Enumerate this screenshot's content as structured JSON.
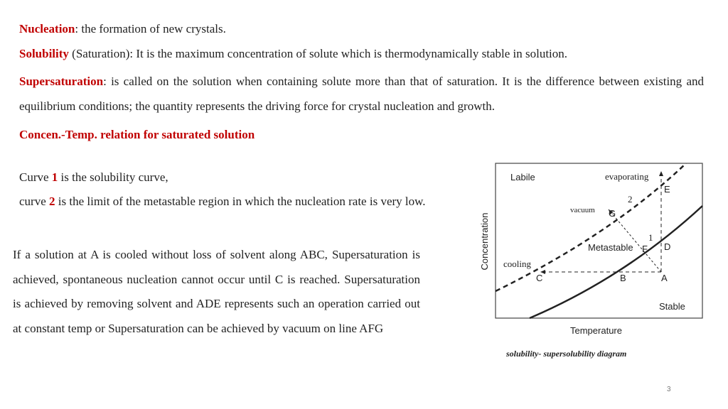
{
  "definitions": [
    {
      "term": "Nucleation",
      "text": ": the formation of new crystals."
    },
    {
      "term": "Solubility",
      "text": "(Saturation): It is the maximum concentration of solute which is thermodynamically stable in solution."
    },
    {
      "term": "Supersaturation",
      "text": ": is called on the solution when containing solute more than that of saturation. It is the difference between existing and equilibrium conditions; the quantity represents the driving force for crystal nucleation and growth."
    }
  ],
  "heading": "Concen.-Temp. relation for saturated solution",
  "curves": [
    {
      "prefix": "Curve",
      "number": "1",
      "text": "is the solubility curve,"
    },
    {
      "prefix": "curve",
      "number": "2",
      "text": "is the limit of the metastable region in which the nucleation rate is very low."
    }
  ],
  "paragraph": "If a solution at A is cooled without loss of solvent along ABC, Supersaturation is achieved, spontaneous nucleation cannot occur until C is reached. Supersaturation is achieved by removing solvent and ADE represents such an operation carried out at constant temp or Supersaturation can be achieved by vacuum on line AFG",
  "diagram": {
    "y_label": "Concentration",
    "x_label": "Temperature",
    "caption": "solubility- supersolubility diagram",
    "labels": {
      "labile": "Labile",
      "evaporating": "evaporating",
      "E": "E",
      "curve2": "2",
      "vacuum": "vacuum",
      "G": "G",
      "curve1": "1",
      "metastable": "Metastable",
      "F": "F",
      "D": "D",
      "cooling": "cooling",
      "C": "C",
      "B": "B",
      "A": "A",
      "stable": "Stable"
    }
  },
  "page_number": "3"
}
